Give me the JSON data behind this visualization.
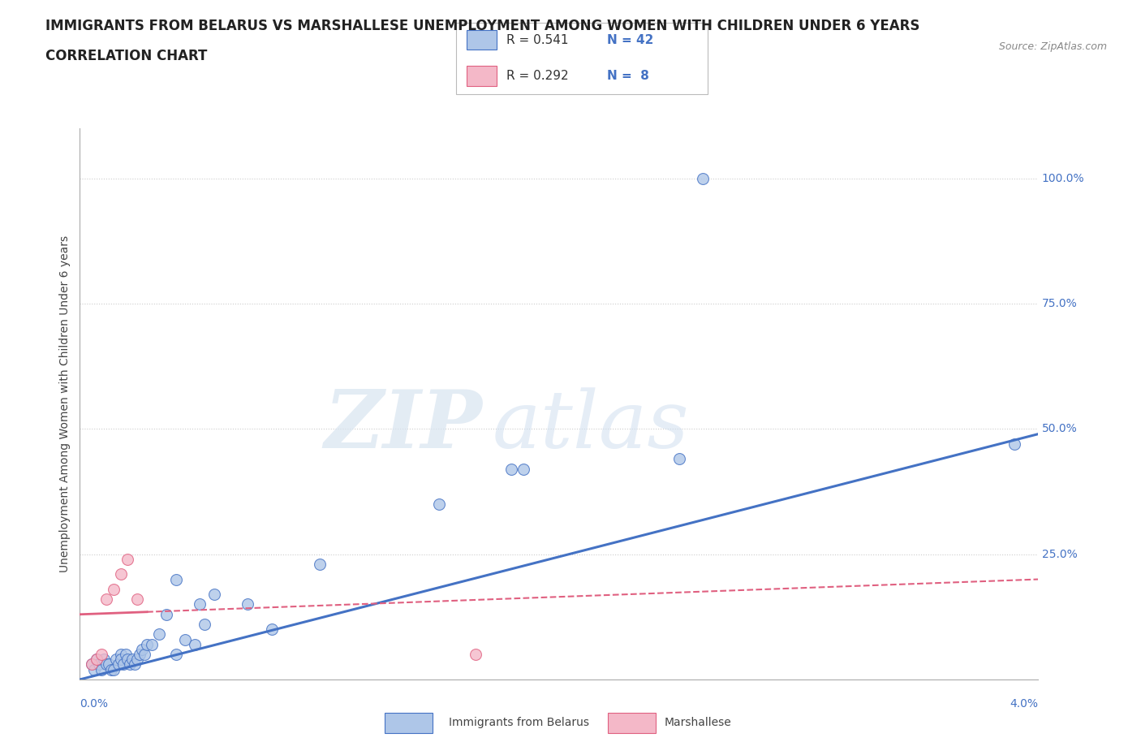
{
  "title_line1": "IMMIGRANTS FROM BELARUS VS MARSHALLESE UNEMPLOYMENT AMONG WOMEN WITH CHILDREN UNDER 6 YEARS",
  "title_line2": "CORRELATION CHART",
  "source": "Source: ZipAtlas.com",
  "xlabel_bottom_left": "0.0%",
  "xlabel_bottom_right": "4.0%",
  "ylabel": "Unemployment Among Women with Children Under 6 years",
  "y_tick_labels": [
    "100.0%",
    "75.0%",
    "50.0%",
    "25.0%"
  ],
  "y_tick_values": [
    100,
    75,
    50,
    25
  ],
  "xmin": 0.0,
  "xmax": 4.0,
  "ymin": 0.0,
  "ymax": 110.0,
  "legend_r1": "R = 0.541",
  "legend_n1": "N = 42",
  "legend_r2": "R = 0.292",
  "legend_n2": "N =  8",
  "color_belarus": "#aec6e8",
  "color_marshallese": "#f4b8c8",
  "color_line_belarus": "#4472c4",
  "color_line_marshallese": "#e06080",
  "background_color": "#ffffff",
  "watermark_zip": "ZIP",
  "watermark_atlas": "atlas",
  "belarus_x": [
    0.05,
    0.06,
    0.07,
    0.08,
    0.09,
    0.1,
    0.11,
    0.12,
    0.13,
    0.14,
    0.15,
    0.16,
    0.17,
    0.17,
    0.18,
    0.19,
    0.2,
    0.21,
    0.22,
    0.23,
    0.24,
    0.25,
    0.26,
    0.27,
    0.28,
    0.3,
    0.33,
    0.36,
    0.4,
    0.44,
    0.48,
    0.52,
    0.56,
    0.7,
    0.8,
    0.4,
    0.5,
    1.0,
    1.5,
    1.8,
    2.5,
    3.9
  ],
  "belarus_y": [
    3,
    2,
    4,
    3,
    2,
    4,
    3,
    3,
    2,
    2,
    4,
    3,
    5,
    4,
    3,
    5,
    4,
    3,
    4,
    3,
    4,
    5,
    6,
    5,
    7,
    7,
    9,
    13,
    5,
    8,
    7,
    11,
    17,
    15,
    10,
    20,
    15,
    23,
    35,
    42,
    44,
    47
  ],
  "marshallese_x": [
    0.05,
    0.07,
    0.09,
    0.11,
    0.14,
    0.17,
    0.2,
    0.24
  ],
  "marshallese_y": [
    3,
    4,
    5,
    16,
    18,
    21,
    24,
    16
  ],
  "top_outlier_x": 2.6,
  "top_outlier_y": 100.0,
  "mid_outlier_x": 1.85,
  "mid_outlier_y": 42.0,
  "marshallese_outlier_x": 1.65,
  "marshallese_outlier_y": 5.0,
  "belarus_reg_x0": 0.0,
  "belarus_reg_y0": 0.0,
  "belarus_reg_x1": 4.0,
  "belarus_reg_y1": 49.0,
  "marshallese_reg_x0": 0.0,
  "marshallese_reg_y0": 13.0,
  "marshallese_reg_x1": 4.0,
  "marshallese_reg_y1": 20.0,
  "marshallese_dash_x0": 0.28,
  "marshallese_dash_x1": 4.0
}
